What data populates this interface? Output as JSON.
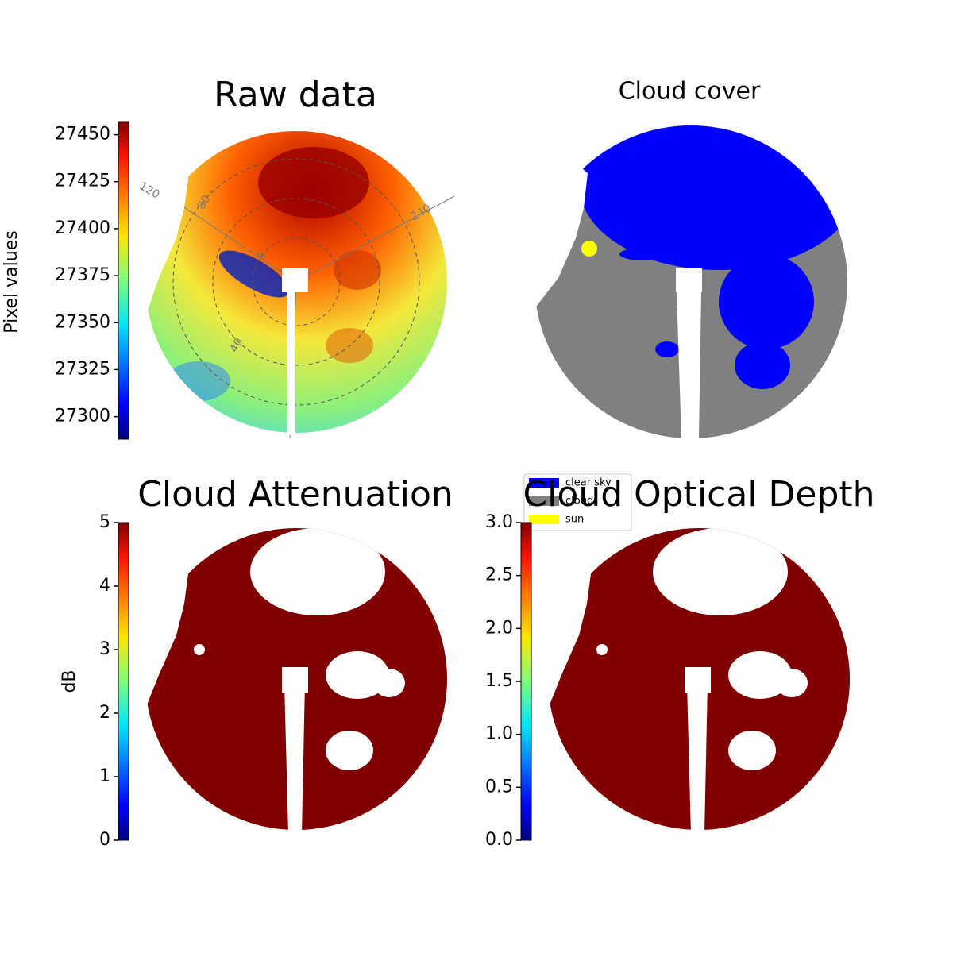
{
  "chart_data": [
    {
      "type": "heatmap",
      "title": "Raw data",
      "colorbar_label": "Pixel values",
      "colormap": "jet",
      "clim": [
        27288,
        27457
      ],
      "cticks": [
        27300,
        27325,
        27350,
        27375,
        27400,
        27425,
        27450
      ],
      "annotations": [
        "120",
        "240",
        "80",
        "40",
        "0"
      ]
    },
    {
      "type": "category-map",
      "title": "Cloud cover",
      "series": [
        {
          "name": "clear sky",
          "color": "#0000ff"
        },
        {
          "name": "cloud",
          "color": "#808080"
        },
        {
          "name": "sun",
          "color": "#ffff00"
        }
      ]
    },
    {
      "type": "heatmap",
      "title": "Cloud Attenuation",
      "colorbar_label": "dB",
      "colormap": "jet",
      "clim": [
        0,
        5
      ],
      "cticks": [
        0,
        1,
        2,
        3,
        4,
        5
      ]
    },
    {
      "type": "heatmap",
      "title": "Cloud Optical Depth",
      "colormap": "jet",
      "clim": [
        0,
        3
      ],
      "cticks": [
        {
          "value": 0,
          "label": "0.0"
        },
        0.5,
        {
          "value": 1,
          "label": "1.0"
        },
        1.5,
        {
          "value": 2,
          "label": "2.0"
        },
        2.5,
        {
          "value": 3,
          "label": "3.0"
        }
      ]
    }
  ]
}
